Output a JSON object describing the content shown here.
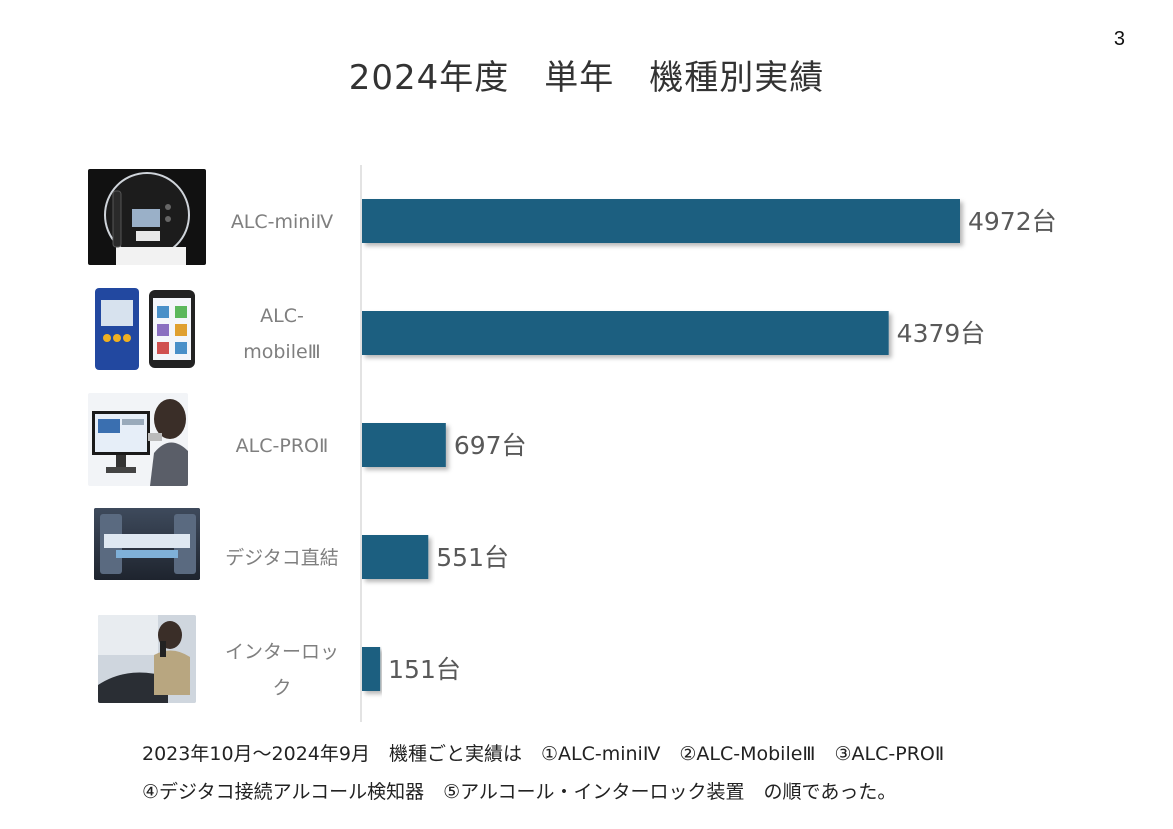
{
  "page_number": "3",
  "title": "2024年度　単年　機種別実績",
  "footer": {
    "line1": "2023年10月～2024年9月　機種ごと実績は　①ALC-miniⅣ　②ALC-MobileⅢ　③ALC-PROⅡ",
    "line2": "④デジタコ接続アルコール検知器　⑤アルコール・インターロック装置　の順であった。"
  },
  "chart_data": {
    "type": "bar",
    "orientation": "horizontal",
    "categories": [
      "ALC-miniⅣ",
      "ALC-mobileⅢ",
      "ALC-PROⅡ",
      "デジタコ直結",
      "インターロック"
    ],
    "category_label_lines": [
      [
        "ALC-miniⅣ"
      ],
      [
        "ALC-",
        "mobileⅢ"
      ],
      [
        "ALC-PROⅡ"
      ],
      [
        "デジタコ直結"
      ],
      [
        "インターロッ",
        "ク"
      ]
    ],
    "values": [
      4972,
      4379,
      697,
      551,
      151
    ],
    "data_labels": [
      "4972台",
      "4379台",
      "697台",
      "551台",
      "151台"
    ],
    "unit": "台",
    "xlim": [
      0,
      4972
    ],
    "bar_color": "#1b5f80",
    "grid": false,
    "legend": "none"
  },
  "thumbnails": [
    {
      "name": "alc-mini-iv-device-image",
      "bg": "#111111",
      "accent": "#d8dee8"
    },
    {
      "name": "alc-mobile-iii-device-image",
      "bg": "#ffffff",
      "accent": "#2a4fa0"
    },
    {
      "name": "alc-pro-ii-usage-image",
      "bg": "#eef2f6",
      "accent": "#3a6fb0"
    },
    {
      "name": "digitaco-link-device-image",
      "bg": "#2c3440",
      "accent": "#7fb0d8"
    },
    {
      "name": "interlock-usage-image",
      "bg": "#d9dde2",
      "accent": "#8a7a5a"
    }
  ]
}
